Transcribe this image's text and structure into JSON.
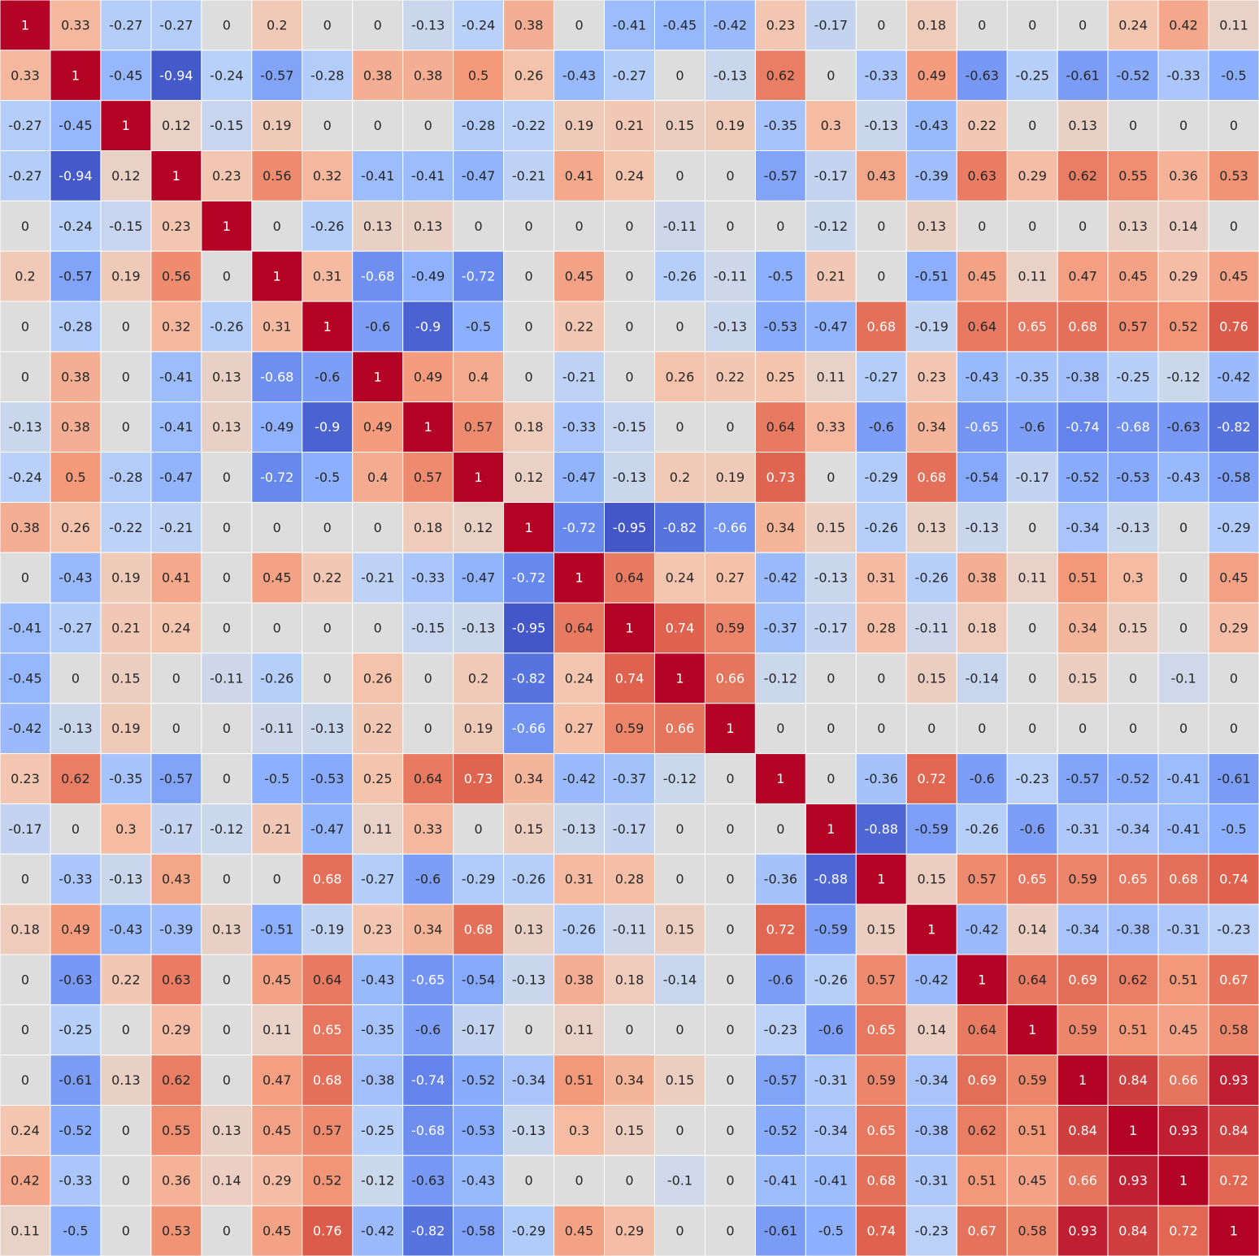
{
  "chart_data": {
    "type": "heatmap",
    "colormap": "coolwarm",
    "value_range": [
      -1,
      1
    ],
    "gridlines": "white",
    "annotated": true,
    "colors": {
      "min": "#3b4cc0",
      "mid": "#dddddd",
      "max": "#b40426"
    },
    "rows": 25,
    "cols": 25,
    "cells": [
      [
        "1",
        "0.33",
        "-0.27",
        "-0.27",
        "0",
        "0.2",
        "0",
        "0",
        "-0.13",
        "-0.24",
        "0.38",
        "0",
        "-0.41",
        "-0.45",
        "-0.42",
        "0.23",
        "-0.17",
        "0",
        "0.18",
        "0",
        "0",
        "0",
        "0.24",
        "0.42",
        "0.11"
      ],
      [
        "0.33",
        "1",
        "-0.45",
        "-0.94",
        "-0.24",
        "-0.57",
        "-0.28",
        "0.38",
        "0.38",
        "0.5",
        "0.26",
        "-0.43",
        "-0.27",
        "0",
        "-0.13",
        "0.62",
        "0",
        "-0.33",
        "0.49",
        "-0.63",
        "-0.25",
        "-0.61",
        "-0.52",
        "-0.33",
        "-0.5"
      ],
      [
        "-0.27",
        "-0.45",
        "1",
        "0.12",
        "-0.15",
        "0.19",
        "0",
        "0",
        "0",
        "-0.28",
        "-0.22",
        "0.19",
        "0.21",
        "0.15",
        "0.19",
        "-0.35",
        "0.3",
        "-0.13",
        "-0.43",
        "0.22",
        "0",
        "0.13",
        "0",
        "0",
        "0"
      ],
      [
        "-0.27",
        "-0.94",
        "0.12",
        "1",
        "0.23",
        "0.56",
        "0.32",
        "-0.41",
        "-0.41",
        "-0.47",
        "-0.21",
        "0.41",
        "0.24",
        "0",
        "0",
        "-0.57",
        "-0.17",
        "0.43",
        "-0.39",
        "0.63",
        "0.29",
        "0.62",
        "0.55",
        "0.36",
        "0.53"
      ],
      [
        "0",
        "-0.24",
        "-0.15",
        "0.23",
        "1",
        "0",
        "-0.26",
        "0.13",
        "0.13",
        "0",
        "0",
        "0",
        "0",
        "-0.11",
        "0",
        "0",
        "-0.12",
        "0",
        "0.13",
        "0",
        "0",
        "0",
        "0.13",
        "0.14",
        "0"
      ],
      [
        "0.2",
        "-0.57",
        "0.19",
        "0.56",
        "0",
        "1",
        "0.31",
        "-0.68",
        "-0.49",
        "-0.72",
        "0",
        "0.45",
        "0",
        "-0.26",
        "-0.11",
        "-0.5",
        "0.21",
        "0",
        "-0.51",
        "0.45",
        "0.11",
        "0.47",
        "0.45",
        "0.29",
        "0.45"
      ],
      [
        "0",
        "-0.28",
        "0",
        "0.32",
        "-0.26",
        "0.31",
        "1",
        "-0.6",
        "-0.9",
        "-0.5",
        "0",
        "0.22",
        "0",
        "0",
        "-0.13",
        "-0.53",
        "-0.47",
        "0.68",
        "-0.19",
        "0.64",
        "0.65",
        "0.68",
        "0.57",
        "0.52",
        "0.76"
      ],
      [
        "0",
        "0.38",
        "0",
        "-0.41",
        "0.13",
        "-0.68",
        "-0.6",
        "1",
        "0.49",
        "0.4",
        "0",
        "-0.21",
        "0",
        "0.26",
        "0.22",
        "0.25",
        "0.11",
        "-0.27",
        "0.23",
        "-0.43",
        "-0.35",
        "-0.38",
        "-0.25",
        "-0.12",
        "-0.42"
      ],
      [
        "-0.13",
        "0.38",
        "0",
        "-0.41",
        "0.13",
        "-0.49",
        "-0.9",
        "0.49",
        "1",
        "0.57",
        "0.18",
        "-0.33",
        "-0.15",
        "0",
        "0",
        "0.64",
        "0.33",
        "-0.6",
        "0.34",
        "-0.65",
        "-0.6",
        "-0.74",
        "-0.68",
        "-0.63",
        "-0.82"
      ],
      [
        "-0.24",
        "0.5",
        "-0.28",
        "-0.47",
        "0",
        "-0.72",
        "-0.5",
        "0.4",
        "0.57",
        "1",
        "0.12",
        "-0.47",
        "-0.13",
        "0.2",
        "0.19",
        "0.73",
        "0",
        "-0.29",
        "0.68",
        "-0.54",
        "-0.17",
        "-0.52",
        "-0.53",
        "-0.43",
        "-0.58"
      ],
      [
        "0.38",
        "0.26",
        "-0.22",
        "-0.21",
        "0",
        "0",
        "0",
        "0",
        "0.18",
        "0.12",
        "1",
        "-0.72",
        "-0.95",
        "-0.82",
        "-0.66",
        "0.34",
        "0.15",
        "-0.26",
        "0.13",
        "-0.13",
        "0",
        "-0.34",
        "-0.13",
        "0",
        "-0.29"
      ],
      [
        "0",
        "-0.43",
        "0.19",
        "0.41",
        "0",
        "0.45",
        "0.22",
        "-0.21",
        "-0.33",
        "-0.47",
        "-0.72",
        "1",
        "0.64",
        "0.24",
        "0.27",
        "-0.42",
        "-0.13",
        "0.31",
        "-0.26",
        "0.38",
        "0.11",
        "0.51",
        "0.3",
        "0",
        "0.45"
      ],
      [
        "-0.41",
        "-0.27",
        "0.21",
        "0.24",
        "0",
        "0",
        "0",
        "0",
        "-0.15",
        "-0.13",
        "-0.95",
        "0.64",
        "1",
        "0.74",
        "0.59",
        "-0.37",
        "-0.17",
        "0.28",
        "-0.11",
        "0.18",
        "0",
        "0.34",
        "0.15",
        "0",
        "0.29"
      ],
      [
        "-0.45",
        "0",
        "0.15",
        "0",
        "-0.11",
        "-0.26",
        "0",
        "0.26",
        "0",
        "0.2",
        "-0.82",
        "0.24",
        "0.74",
        "1",
        "0.66",
        "-0.12",
        "0",
        "0",
        "0.15",
        "-0.14",
        "0",
        "0.15",
        "0",
        "-0.1",
        "0"
      ],
      [
        "-0.42",
        "-0.13",
        "0.19",
        "0",
        "0",
        "-0.11",
        "-0.13",
        "0.22",
        "0",
        "0.19",
        "-0.66",
        "0.27",
        "0.59",
        "0.66",
        "1",
        "0",
        "0",
        "0",
        "0",
        "0",
        "0",
        "0",
        "0",
        "0",
        "0"
      ],
      [
        "0.23",
        "0.62",
        "-0.35",
        "-0.57",
        "0",
        "-0.5",
        "-0.53",
        "0.25",
        "0.64",
        "0.73",
        "0.34",
        "-0.42",
        "-0.37",
        "-0.12",
        "0",
        "1",
        "0",
        "-0.36",
        "0.72",
        "-0.6",
        "-0.23",
        "-0.57",
        "-0.52",
        "-0.41",
        "-0.61"
      ],
      [
        "-0.17",
        "0",
        "0.3",
        "-0.17",
        "-0.12",
        "0.21",
        "-0.47",
        "0.11",
        "0.33",
        "0",
        "0.15",
        "-0.13",
        "-0.17",
        "0",
        "0",
        "0",
        "1",
        "-0.88",
        "-0.59",
        "-0.26",
        "-0.6",
        "-0.31",
        "-0.34",
        "-0.41",
        "-0.5"
      ],
      [
        "0",
        "-0.33",
        "-0.13",
        "0.43",
        "0",
        "0",
        "0.68",
        "-0.27",
        "-0.6",
        "-0.29",
        "-0.26",
        "0.31",
        "0.28",
        "0",
        "0",
        "-0.36",
        "-0.88",
        "1",
        "0.15",
        "0.57",
        "0.65",
        "0.59",
        "0.65",
        "0.68",
        "0.74"
      ],
      [
        "0.18",
        "0.49",
        "-0.43",
        "-0.39",
        "0.13",
        "-0.51",
        "-0.19",
        "0.23",
        "0.34",
        "0.68",
        "0.13",
        "-0.26",
        "-0.11",
        "0.15",
        "0",
        "0.72",
        "-0.59",
        "0.15",
        "1",
        "-0.42",
        "0.14",
        "-0.34",
        "-0.38",
        "-0.31",
        "-0.23"
      ],
      [
        "0",
        "-0.63",
        "0.22",
        "0.63",
        "0",
        "0.45",
        "0.64",
        "-0.43",
        "-0.65",
        "-0.54",
        "-0.13",
        "0.38",
        "0.18",
        "-0.14",
        "0",
        "-0.6",
        "-0.26",
        "0.57",
        "-0.42",
        "1",
        "0.64",
        "0.69",
        "0.62",
        "0.51",
        "0.67"
      ],
      [
        "0",
        "-0.25",
        "0",
        "0.29",
        "0",
        "0.11",
        "0.65",
        "-0.35",
        "-0.6",
        "-0.17",
        "0",
        "0.11",
        "0",
        "0",
        "0",
        "-0.23",
        "-0.6",
        "0.65",
        "0.14",
        "0.64",
        "1",
        "0.59",
        "0.51",
        "0.45",
        "0.58"
      ],
      [
        "0",
        "-0.61",
        "0.13",
        "0.62",
        "0",
        "0.47",
        "0.68",
        "-0.38",
        "-0.74",
        "-0.52",
        "-0.34",
        "0.51",
        "0.34",
        "0.15",
        "0",
        "-0.57",
        "-0.31",
        "0.59",
        "-0.34",
        "0.69",
        "0.59",
        "1",
        "0.84",
        "0.66",
        "0.93"
      ],
      [
        "0.24",
        "-0.52",
        "0",
        "0.55",
        "0.13",
        "0.45",
        "0.57",
        "-0.25",
        "-0.68",
        "-0.53",
        "-0.13",
        "0.3",
        "0.15",
        "0",
        "0",
        "-0.52",
        "-0.34",
        "0.65",
        "-0.38",
        "0.62",
        "0.51",
        "0.84",
        "1",
        "0.93",
        "0.84"
      ],
      [
        "0.42",
        "-0.33",
        "0",
        "0.36",
        "0.14",
        "0.29",
        "0.52",
        "-0.12",
        "-0.63",
        "-0.43",
        "0",
        "0",
        "0",
        "-0.1",
        "0",
        "-0.41",
        "-0.41",
        "0.68",
        "-0.31",
        "0.51",
        "0.45",
        "0.66",
        "0.93",
        "1",
        "0.72"
      ],
      [
        "0.11",
        "-0.5",
        "0",
        "0.53",
        "0",
        "0.45",
        "0.76",
        "-0.42",
        "-0.82",
        "-0.58",
        "-0.29",
        "0.45",
        "0.29",
        "0",
        "0",
        "-0.61",
        "-0.5",
        "0.74",
        "-0.23",
        "0.67",
        "0.58",
        "0.93",
        "0.84",
        "0.72",
        "1"
      ]
    ]
  }
}
